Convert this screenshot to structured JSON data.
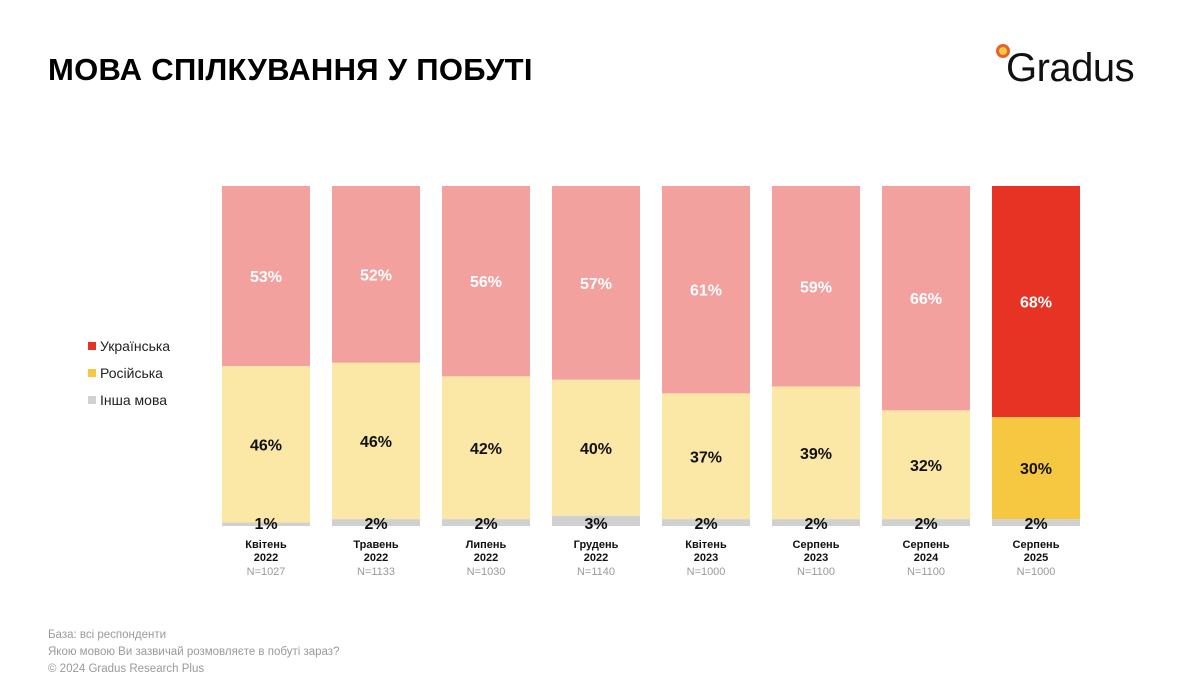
{
  "title": "МОВА СПІЛКУВАННЯ У ПОБУТІ",
  "logo_text": "Gradus",
  "legend": [
    {
      "label": "Українська",
      "color": "#e63323"
    },
    {
      "label": "Російська",
      "color": "#f6c842"
    },
    {
      "label": "Інша мова",
      "color": "#d0d0d0"
    }
  ],
  "footer": {
    "base": "База: всі респонденти",
    "question": "Якою мовою Ви зазвичай розмовляєте в побуті зараз?",
    "copyright": "© 2024 Gradus Research Plus"
  },
  "chart_data": {
    "type": "bar",
    "stacked": true,
    "categories": [
      {
        "month": "Квітень",
        "year": "2022",
        "n": "N=1027"
      },
      {
        "month": "Травень",
        "year": "2022",
        "n": "N=1133"
      },
      {
        "month": "Липень",
        "year": "2022",
        "n": "N=1030"
      },
      {
        "month": "Грудень",
        "year": "2022",
        "n": "N=1140"
      },
      {
        "month": "Квітень",
        "year": "2023",
        "n": "N=1000"
      },
      {
        "month": "Серпень",
        "year": "2023",
        "n": "N=1100"
      },
      {
        "month": "Серпень",
        "year": "2024",
        "n": "N=1100"
      },
      {
        "month": "Серпень",
        "year": "2025",
        "n": "N=1000"
      }
    ],
    "series": [
      {
        "name": "Українська",
        "values": [
          53,
          52,
          56,
          57,
          61,
          59,
          66,
          68
        ]
      },
      {
        "name": "Російська",
        "values": [
          46,
          46,
          42,
          40,
          37,
          39,
          32,
          30
        ]
      },
      {
        "name": "Інша мова",
        "values": [
          1,
          2,
          2,
          3,
          2,
          2,
          2,
          2
        ]
      }
    ],
    "colors": {
      "ukrainian_muted": "#f2a19f",
      "russian_muted": "#fbe8a6",
      "other": "#d0d0d0",
      "ukrainian_highlight": "#e63323",
      "russian_highlight": "#f6c842"
    },
    "highlighted_category_index": 7,
    "value_suffix": "%",
    "ylim": [
      0,
      100
    ],
    "grid": false,
    "legend_position": "left"
  }
}
